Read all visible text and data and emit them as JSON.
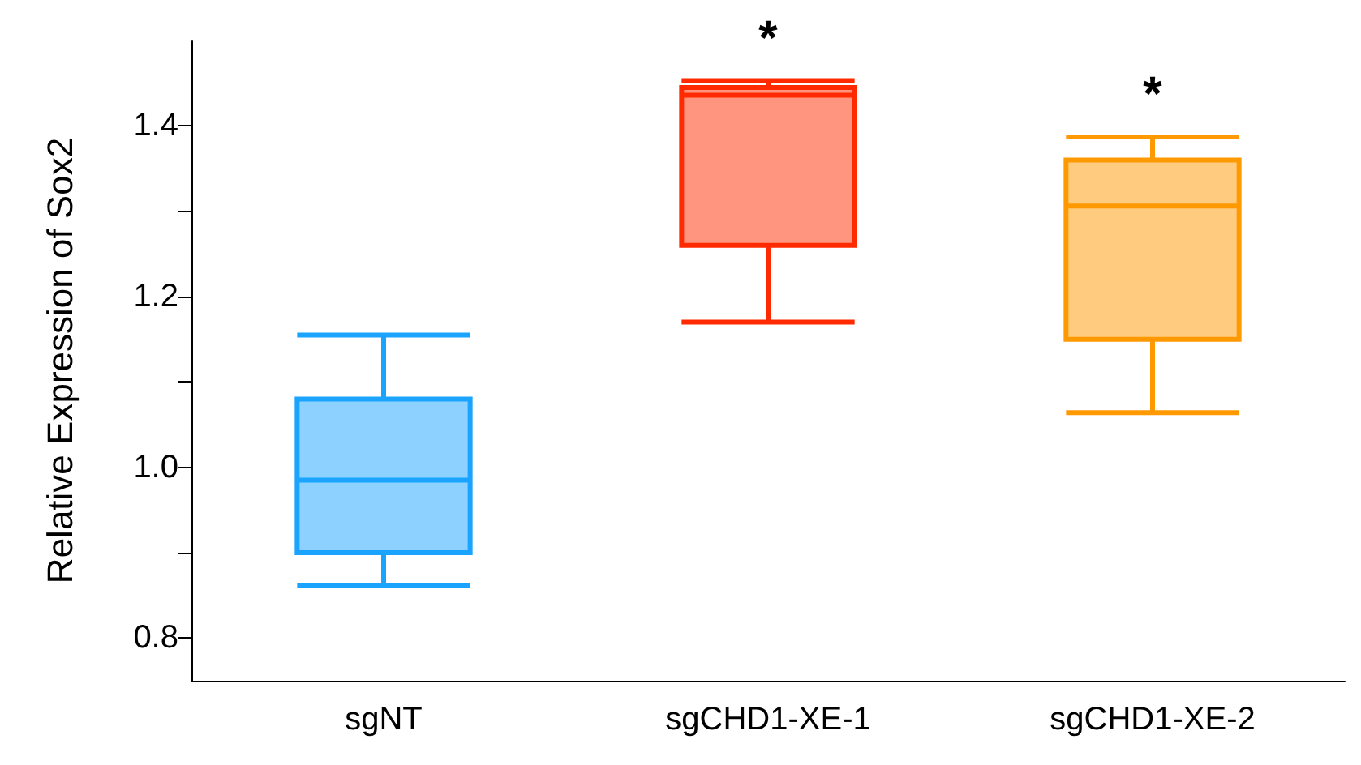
{
  "chart_data": {
    "type": "box",
    "ylabel": "Relative Expression of Sox2",
    "categories": [
      "sgNT",
      "sgCHD1-XE-1",
      "sgCHD1-XE-2"
    ],
    "boxes": [
      {
        "low": 0.862,
        "q1": 0.9,
        "median": 0.985,
        "q3": 1.08,
        "high": 1.155
      },
      {
        "low": 1.17,
        "q1": 1.26,
        "median": 1.436,
        "q3": 1.445,
        "high": 1.453
      },
      {
        "low": 1.064,
        "q1": 1.15,
        "median": 1.306,
        "q3": 1.36,
        "high": 1.387
      }
    ],
    "colors": [
      "#1aa3ff",
      "#ff2a00",
      "#ff9900"
    ],
    "ylim": [
      0.75,
      1.5
    ],
    "yticks": [
      {
        "value": 0.8,
        "label": "0.8"
      },
      {
        "value": 0.9,
        "label": null
      },
      {
        "value": 1.0,
        "label": "1.0"
      },
      {
        "value": 1.1,
        "label": null
      },
      {
        "value": 1.2,
        "label": "1.2"
      },
      {
        "value": 1.3,
        "label": null
      },
      {
        "value": 1.4,
        "label": "1.4"
      }
    ],
    "annotations": [
      "*",
      "*"
    ],
    "grid": false
  }
}
